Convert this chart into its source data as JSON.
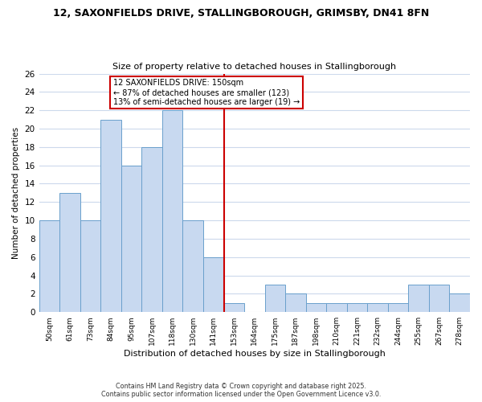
{
  "title1": "12, SAXONFIELDS DRIVE, STALLINGBOROUGH, GRIMSBY, DN41 8FN",
  "title2": "Size of property relative to detached houses in Stallingborough",
  "xlabel": "Distribution of detached houses by size in Stallingborough",
  "ylabel": "Number of detached properties",
  "categories": [
    "50sqm",
    "61sqm",
    "73sqm",
    "84sqm",
    "95sqm",
    "107sqm",
    "118sqm",
    "130sqm",
    "141sqm",
    "153sqm",
    "164sqm",
    "175sqm",
    "187sqm",
    "198sqm",
    "210sqm",
    "221sqm",
    "232sqm",
    "244sqm",
    "255sqm",
    "267sqm",
    "278sqm"
  ],
  "values": [
    10,
    13,
    10,
    21,
    16,
    18,
    22,
    10,
    6,
    1,
    0,
    3,
    2,
    1,
    1,
    1,
    1,
    1,
    3,
    3,
    2
  ],
  "bar_color": "#c8d9f0",
  "bar_edge_color": "#6aa0cc",
  "reference_line_color": "#cc0000",
  "annotation_line1": "12 SAXONFIELDS DRIVE: 150sqm",
  "annotation_line2": "← 87% of detached houses are smaller (123)",
  "annotation_line3": "13% of semi-detached houses are larger (19) →",
  "annotation_box_color": "#ffffff",
  "annotation_box_edge": "#cc0000",
  "ylim": [
    0,
    26
  ],
  "yticks": [
    0,
    2,
    4,
    6,
    8,
    10,
    12,
    14,
    16,
    18,
    20,
    22,
    24,
    26
  ],
  "footnote1": "Contains HM Land Registry data © Crown copyright and database right 2025.",
  "footnote2": "Contains public sector information licensed under the Open Government Licence v3.0.",
  "bg_color": "#ffffff",
  "grid_color": "#ccd9ec"
}
